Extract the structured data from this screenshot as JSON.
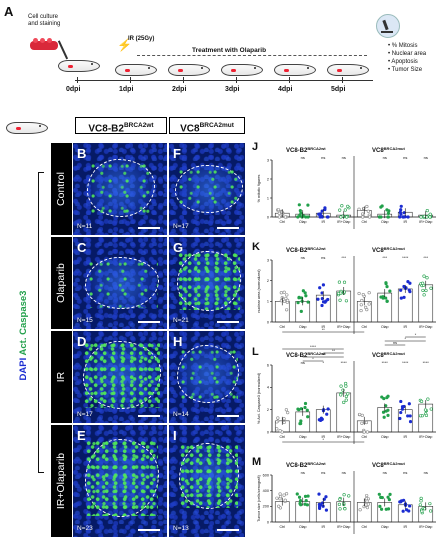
{
  "panel_a": {
    "label": "A",
    "setup_label_1": "Cell culture",
    "setup_label_2": "and staining",
    "ir_label": "IR (25Gy)",
    "treatment_label": "Treatment with Olaparib",
    "days": [
      "0dpi",
      "1dpi",
      "2dpi",
      "3dpi",
      "4dpi",
      "5dpi"
    ],
    "readouts": [
      "• % Mitosis",
      "• Nuclear area",
      "• Apoptosis",
      "• Tumor Size"
    ]
  },
  "images": {
    "col1_title": "VC8-B2",
    "col1_sup": "BRCA2wt",
    "col2_title": "VC8",
    "col2_sup": "BRCA2mut",
    "side_label_blue": "DAPI",
    "side_label_green": "Act. Caspase3",
    "rows": [
      {
        "name": "Control",
        "left": {
          "letter": "B",
          "n": "N=11"
        },
        "right": {
          "letter": "F",
          "n": "N=17"
        }
      },
      {
        "name": "Olaparib",
        "left": {
          "letter": "C",
          "n": "N=15"
        },
        "right": {
          "letter": "G",
          "n": "N=21"
        }
      },
      {
        "name": "IR",
        "left": {
          "letter": "D",
          "n": "N=17"
        },
        "right": {
          "letter": "H",
          "n": "N=14"
        }
      },
      {
        "name": "IR+Olaparib",
        "left": {
          "letter": "E",
          "n": "N=23"
        },
        "right": {
          "letter": "I",
          "n": "N=13"
        }
      }
    ]
  },
  "chart_data": [
    {
      "panel": "J",
      "type": "scatter",
      "group_titles": [
        "VC8-B2",
        "VC8"
      ],
      "group_sups": [
        "BRCA2wt",
        "BRCA2mut"
      ],
      "ylabel": "% mitotic figures",
      "ylim": [
        0,
        3
      ],
      "yticks": [
        0,
        1,
        2,
        3
      ],
      "categories": [
        "Ctrl",
        "Olap",
        "IR",
        "IR+Olap",
        "Ctrl",
        "Olap",
        "IR",
        "IR+Olap"
      ],
      "means": [
        0.2,
        0.15,
        0.2,
        0.1,
        0.35,
        0.15,
        0.25,
        0.1
      ],
      "sig": [
        "",
        "ns",
        "ns",
        "ns",
        "",
        "ns",
        "ns",
        "ns"
      ],
      "brackets": []
    },
    {
      "panel": "K",
      "type": "scatter",
      "group_titles": [
        "VC8-B2",
        "VC8"
      ],
      "group_sups": [
        "BRCA2wt",
        "BRCA2mut"
      ],
      "ylabel": "nuclear area (normalized)",
      "ylim": [
        0,
        3
      ],
      "yticks": [
        0,
        1,
        2,
        3
      ],
      "categories": [
        "Ctrl",
        "Olap",
        "IR",
        "IR+Olap",
        "Ctrl",
        "Olap",
        "IR",
        "IR+Olap"
      ],
      "means": [
        1.0,
        1.0,
        1.3,
        1.5,
        1.0,
        1.4,
        1.6,
        1.8
      ],
      "sig": [
        "",
        "ns",
        "ns",
        "***",
        "",
        "***",
        "****",
        "***"
      ],
      "brackets": [
        {
          "from": 0,
          "to": 4,
          "label": "**"
        }
      ]
    },
    {
      "panel": "L",
      "type": "scatter",
      "group_titles": [
        "VC8-B2",
        "VC8"
      ],
      "group_sups": [
        "BRCA2wt",
        "BRCA2mut"
      ],
      "ylabel": "% Act. Caspase3 (normalized)",
      "ylim": [
        0,
        6
      ],
      "yticks": [
        0,
        2,
        4,
        6
      ],
      "categories": [
        "Ctrl",
        "Olap",
        "IR",
        "IR+Olap",
        "Ctrl",
        "Olap",
        "IR",
        "IR+Olap"
      ],
      "means": [
        1.0,
        1.8,
        2.0,
        3.5,
        1.0,
        2.2,
        2.0,
        2.5
      ],
      "sig": [
        "",
        "ns",
        "*",
        "****",
        "",
        "****",
        "****",
        "****"
      ],
      "brackets": [
        {
          "from": 1,
          "to": 2,
          "label": "*"
        },
        {
          "from": 1,
          "to": 3,
          "label": "**"
        },
        {
          "from": 2,
          "to": 3,
          "label": "**"
        },
        {
          "from": 0,
          "to": 3,
          "label": "****"
        },
        {
          "from": 5,
          "to": 6,
          "label": "ns"
        },
        {
          "from": 5,
          "to": 7,
          "label": "*"
        },
        {
          "from": 6,
          "to": 7,
          "label": "*"
        },
        {
          "from": 0,
          "to": 4,
          "label": "*"
        }
      ]
    },
    {
      "panel": "M",
      "type": "scatter",
      "group_titles": [
        "VC8-B2",
        "VC8"
      ],
      "group_sups": [
        "BRCA2wt",
        "BRCA2mut"
      ],
      "ylabel": "Tumor size (cells/xenograft)",
      "ylim": [
        0,
        600
      ],
      "yticks": [
        0,
        200,
        400,
        600
      ],
      "categories": [
        "Ctrl",
        "Olap",
        "IR",
        "IR+Olap",
        "Ctrl",
        "Olap",
        "IR",
        "IR+Olap"
      ],
      "means": [
        260,
        260,
        250,
        260,
        250,
        250,
        220,
        200
      ],
      "sig": [
        "",
        "ns",
        "ns",
        "ns",
        "",
        "ns",
        "ns",
        "ns"
      ],
      "brackets": []
    }
  ],
  "colors": {
    "blue": "#1b2cd1",
    "green": "#22a04b",
    "grey": "#8a8a8a"
  }
}
